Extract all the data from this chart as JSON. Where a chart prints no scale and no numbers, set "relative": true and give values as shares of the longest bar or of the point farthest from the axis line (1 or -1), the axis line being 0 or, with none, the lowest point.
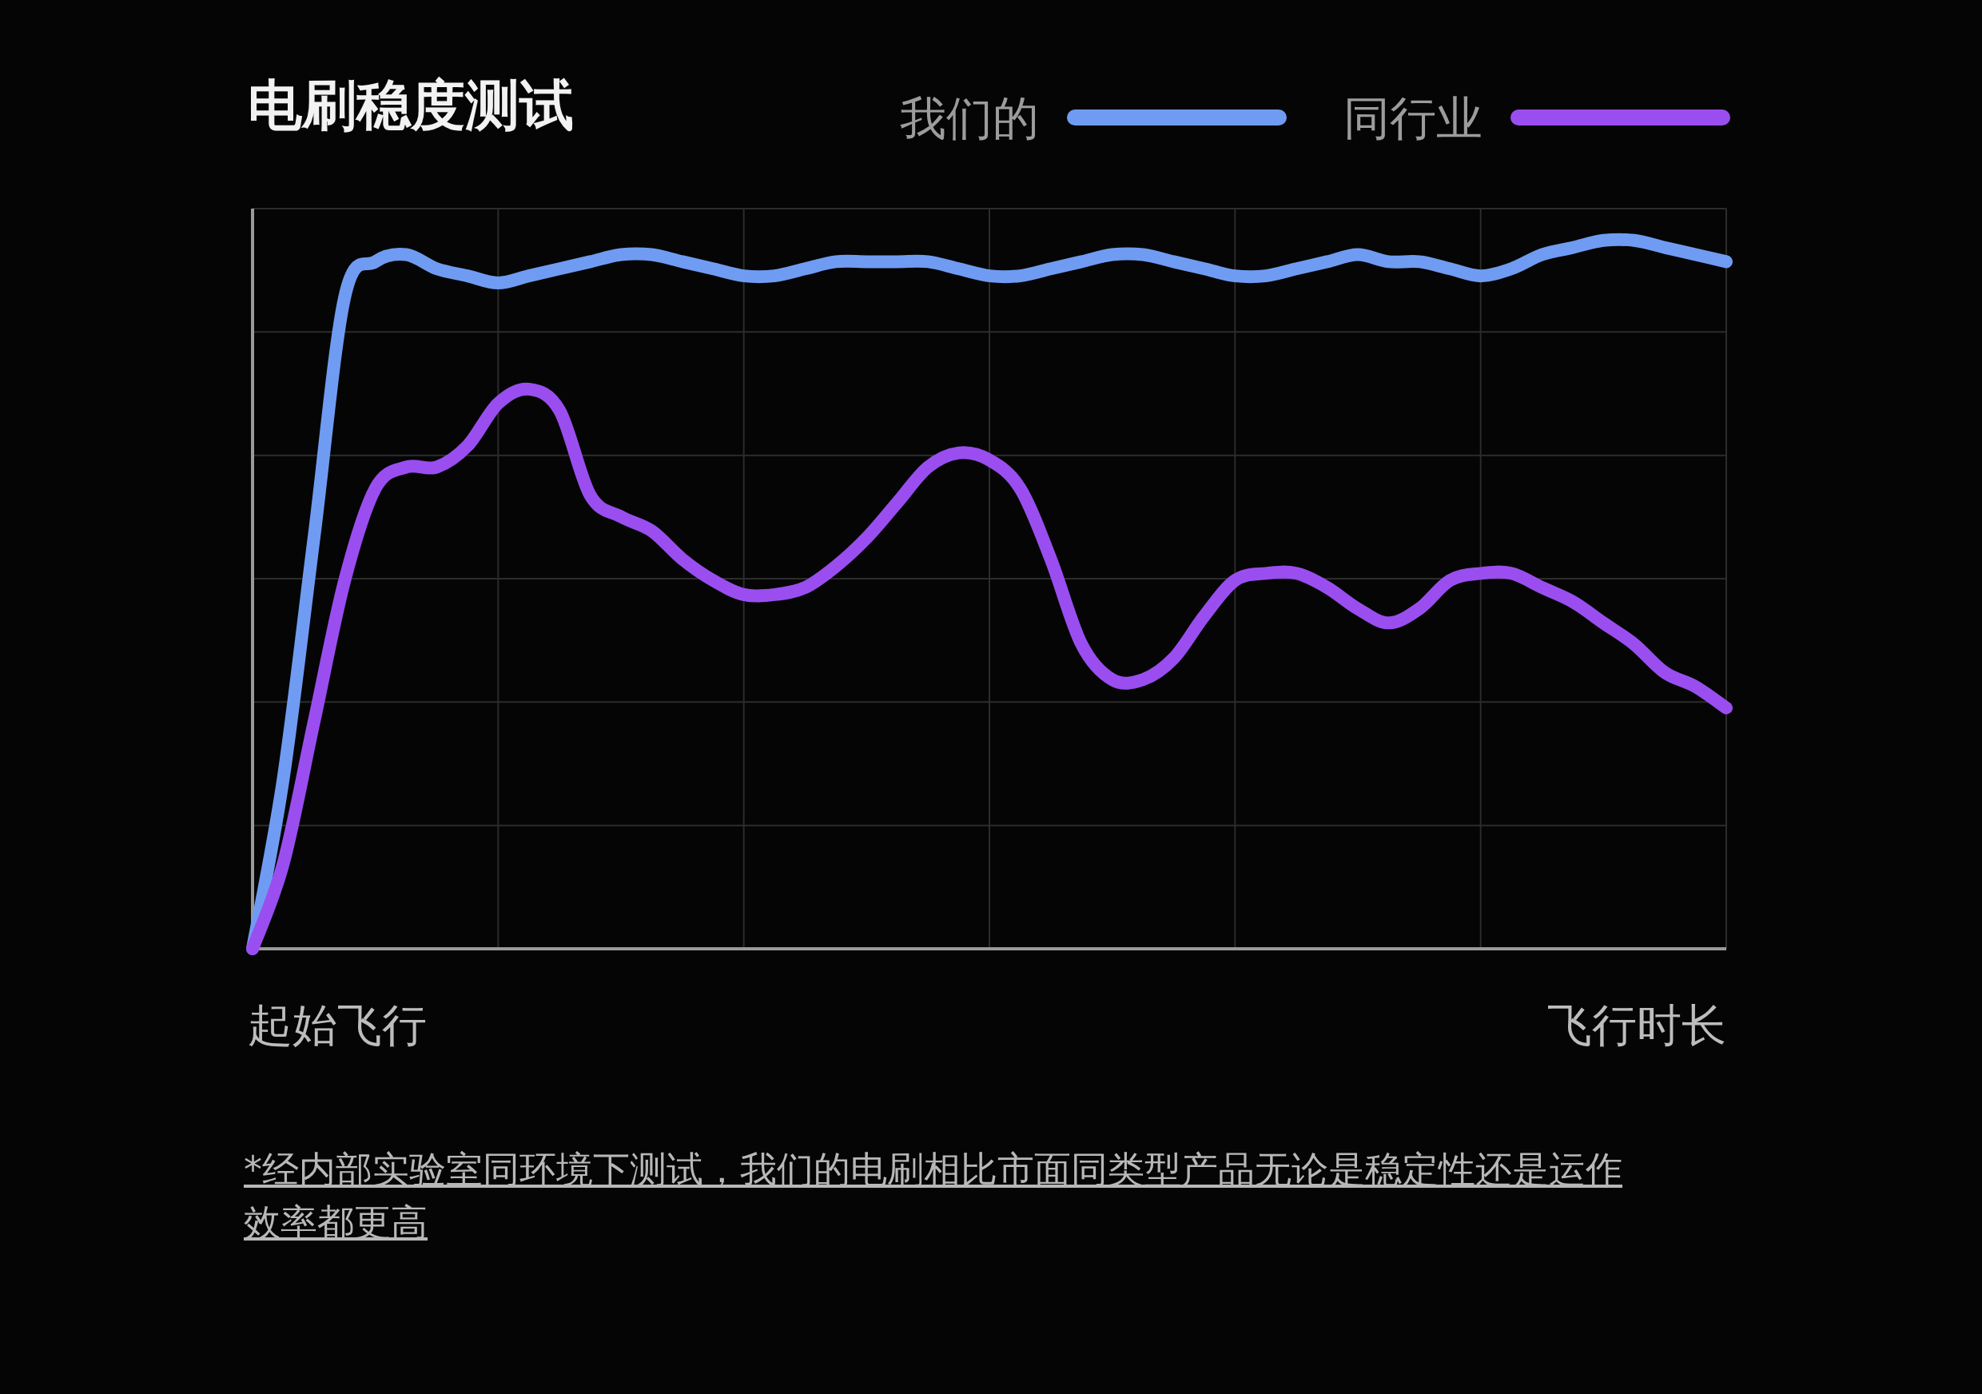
{
  "chart_data": {
    "type": "line",
    "title": "电刷稳度测试",
    "xlabel": "飞行时长",
    "relative": true,
    "grid": true,
    "legend": "top right",
    "marker": "none",
    "line_style": "solid",
    "categories": [
      null,
      null,
      null,
      null,
      null,
      null,
      null,
      null,
      null,
      null,
      null,
      null,
      null,
      null,
      null,
      null,
      null,
      null,
      null,
      null,
      null,
      null,
      null,
      null,
      null,
      null,
      null,
      null,
      null,
      null,
      null,
      null,
      null,
      null,
      null,
      null,
      null,
      null,
      null,
      null,
      null,
      null,
      null,
      null,
      null,
      null,
      null,
      null,
      null
    ],
    "series": [
      {
        "name": "我们的",
        "color": "#6f9cf2",
        "values": [
          0,
          0.24,
          0.58,
          0.92,
          0.97,
          0.98,
          0.96,
          0.95,
          0.94,
          0.95,
          0.96,
          0.97,
          0.98,
          0.98,
          0.97,
          0.96,
          0.95,
          0.95,
          0.96,
          0.97,
          0.97,
          0.97,
          0.97,
          0.96,
          0.95,
          0.95,
          0.96,
          0.97,
          0.98,
          0.98,
          0.97,
          0.96,
          0.95,
          0.95,
          0.96,
          0.97,
          0.98,
          0.97,
          0.97,
          0.96,
          0.95,
          0.96,
          0.98,
          0.99,
          1.0,
          1.0,
          0.99,
          0.98,
          0.97
        ]
      },
      {
        "name": "同行业",
        "color": "#9a4ef0",
        "values": [
          0,
          0.12,
          0.32,
          0.52,
          0.65,
          0.68,
          0.68,
          0.71,
          0.77,
          0.79,
          0.76,
          0.64,
          0.61,
          0.59,
          0.55,
          0.52,
          0.5,
          0.5,
          0.51,
          0.54,
          0.58,
          0.63,
          0.68,
          0.7,
          0.69,
          0.65,
          0.55,
          0.43,
          0.38,
          0.38,
          0.41,
          0.47,
          0.52,
          0.53,
          0.53,
          0.51,
          0.48,
          0.46,
          0.48,
          0.52,
          0.53,
          0.53,
          0.51,
          0.49,
          0.46,
          0.43,
          0.39,
          0.37,
          0.34
        ]
      }
    ],
    "annotations": [
      "起始飞行",
      "*经内部实验室同环境下测试，我们的电刷相比市面同类型产品无论是稳定性还是运作效率都更高"
    ]
  }
}
